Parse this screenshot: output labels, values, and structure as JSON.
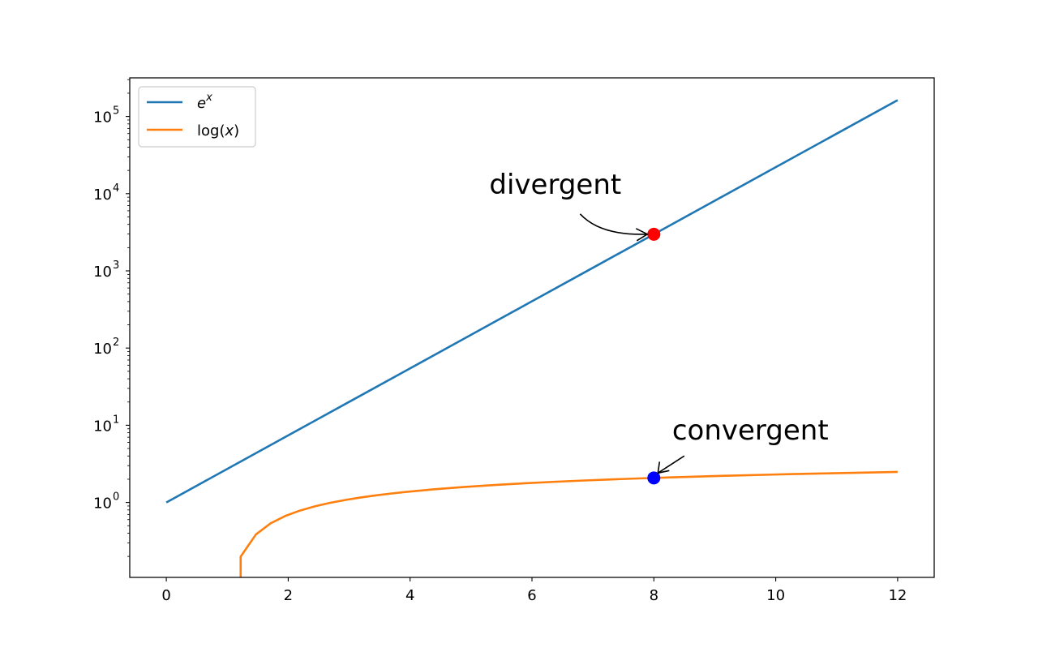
{
  "chart_data": {
    "type": "line",
    "title": "",
    "xlabel": "",
    "ylabel": "",
    "y_scale": "log",
    "xlim": [
      -0.6,
      12.6
    ],
    "ylim": [
      0.107,
      316227
    ],
    "grid": false,
    "legend_position": "upper-left",
    "x_ticks": [
      "0",
      "2",
      "4",
      "6",
      "8",
      "10",
      "12"
    ],
    "y_ticks": [
      {
        "base": "10",
        "exp": "0"
      },
      {
        "base": "10",
        "exp": "1"
      },
      {
        "base": "10",
        "exp": "2"
      },
      {
        "base": "10",
        "exp": "3"
      },
      {
        "base": "10",
        "exp": "4"
      },
      {
        "base": "10",
        "exp": "5"
      }
    ],
    "series": [
      {
        "key": "exp",
        "name_base": "e",
        "name_sup": "x",
        "color": "#1f77b4",
        "x": [
          0,
          1,
          2,
          3,
          4,
          5,
          6,
          7,
          8,
          9,
          10,
          11,
          12
        ],
        "y": [
          1,
          2.718,
          7.389,
          20.09,
          54.6,
          148.4,
          403.4,
          1096.6,
          2981,
          8103,
          22026,
          59874,
          162755
        ]
      },
      {
        "key": "log",
        "name_base": "log(",
        "name_italic": "x",
        "name_end": ")",
        "color": "#ff7f0e",
        "x": [
          1.22,
          1.22,
          1.47,
          1.71,
          1.96,
          2.2,
          2.45,
          2.69,
          2.94,
          3.18,
          3.43,
          3.67,
          3.92,
          4.4,
          4.9,
          5.39,
          5.88,
          6.37,
          6.86,
          7.35,
          7.84,
          8.33,
          8.82,
          9.31,
          9.8,
          10.29,
          10.78,
          11.27,
          11.76,
          12
        ],
        "y": [
          0.107,
          0.199,
          0.385,
          0.536,
          0.673,
          0.788,
          0.896,
          0.99,
          1.078,
          1.157,
          1.233,
          1.3,
          1.366,
          1.482,
          1.589,
          1.685,
          1.771,
          1.852,
          1.926,
          1.995,
          2.059,
          2.12,
          2.177,
          2.231,
          2.282,
          2.331,
          2.378,
          2.422,
          2.465,
          2.485
        ]
      }
    ],
    "markers": [
      {
        "x": 8,
        "y": 2981,
        "color": "#ff0000",
        "series": "exp"
      },
      {
        "x": 8,
        "y": 2.079,
        "color": "#0000ff",
        "series": "log"
      }
    ],
    "annotations": [
      {
        "text": "divergent",
        "x": 8,
        "y": 2981,
        "text_x": 5.3,
        "text_y": 10000,
        "curved": true
      },
      {
        "text": "convergent",
        "x": 8,
        "y": 2.079,
        "text_x": 8.3,
        "text_y": 6.5,
        "curved": false
      }
    ]
  }
}
